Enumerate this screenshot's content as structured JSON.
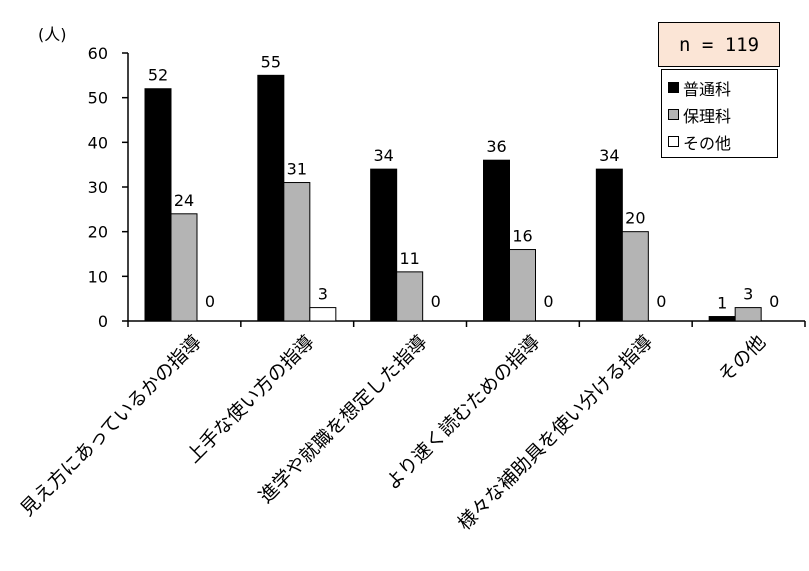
{
  "chart_data": {
    "type": "bar",
    "unit_label": "(人)",
    "n_label": "n = 119",
    "ylim": [
      0,
      60
    ],
    "yticks": [
      0,
      10,
      20,
      30,
      40,
      50,
      60
    ],
    "categories": [
      "見え方にあっているかの指導",
      "上手な使い方の指導",
      "進学や就職を想定した指導",
      "より速く読むための指導",
      "様々な補助具を使い分ける指導",
      "その他"
    ],
    "series": [
      {
        "name": "普通科",
        "color": "#000000",
        "values": [
          52,
          55,
          34,
          36,
          34,
          1
        ]
      },
      {
        "name": "保理科",
        "color": "#b4b4b4",
        "values": [
          24,
          31,
          11,
          16,
          20,
          3
        ]
      },
      {
        "name": "その他",
        "color": "#ffffff",
        "values": [
          0,
          3,
          0,
          0,
          0,
          0
        ]
      }
    ],
    "legend_position": "top-right",
    "grid": false
  }
}
